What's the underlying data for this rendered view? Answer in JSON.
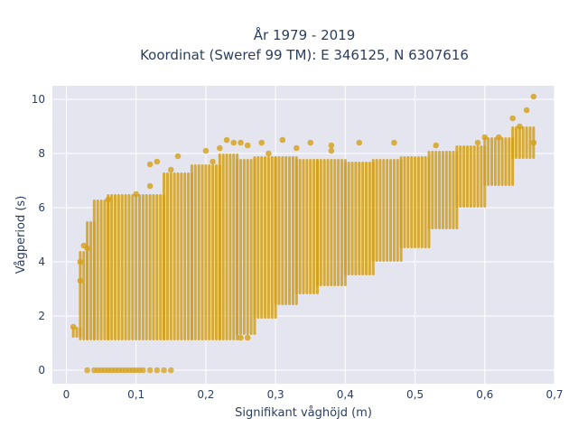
{
  "chart_data": {
    "type": "scatter",
    "title_line1": "År 1979 - 2019",
    "title_line2": "Koordinat (Sweref 99 TM): E 346125, N 6307616",
    "xlabel": "Signifikant våghöjd (m)",
    "ylabel": "Vågperiod (s)",
    "xlim": [
      -0.02,
      0.7
    ],
    "ylim": [
      -0.5,
      10.5
    ],
    "xticks": [
      0,
      0.1,
      0.2,
      0.3,
      0.4,
      0.5,
      0.6,
      0.7
    ],
    "xtick_labels": [
      "0",
      "0,1",
      "0,2",
      "0,3",
      "0,4",
      "0,5",
      "0,6",
      "0,7"
    ],
    "yticks": [
      0,
      2,
      4,
      6,
      8,
      10
    ],
    "ytick_labels": [
      "0",
      "2",
      "4",
      "6",
      "8",
      "10"
    ],
    "grid": true,
    "marker_color": "#d4a017",
    "plot_bg": "#e5e5f0",
    "x_step": 0.005,
    "columns": [
      {
        "x0": 0.01,
        "x1": 0.02,
        "ymin": 1.2,
        "ymax": 1.6
      },
      {
        "x0": 0.02,
        "x1": 0.03,
        "ymin": 1.1,
        "ymax": 4.4
      },
      {
        "x0": 0.03,
        "x1": 0.04,
        "ymin": 1.1,
        "ymax": 5.5
      },
      {
        "x0": 0.04,
        "x1": 0.06,
        "ymin": 1.1,
        "ymax": 6.3
      },
      {
        "x0": 0.06,
        "x1": 0.14,
        "ymin": 1.1,
        "ymax": 6.5
      },
      {
        "x0": 0.14,
        "x1": 0.18,
        "ymin": 1.1,
        "ymax": 7.3
      },
      {
        "x0": 0.18,
        "x1": 0.22,
        "ymin": 1.1,
        "ymax": 7.6
      },
      {
        "x0": 0.22,
        "x1": 0.245,
        "ymin": 1.1,
        "ymax": 8.0
      },
      {
        "x0": 0.245,
        "x1": 0.27,
        "ymin": 1.3,
        "ymax": 7.8
      },
      {
        "x0": 0.27,
        "x1": 0.3,
        "ymin": 1.9,
        "ymax": 7.9
      },
      {
        "x0": 0.3,
        "x1": 0.33,
        "ymin": 2.4,
        "ymax": 7.9
      },
      {
        "x0": 0.33,
        "x1": 0.36,
        "ymin": 2.8,
        "ymax": 7.8
      },
      {
        "x0": 0.36,
        "x1": 0.4,
        "ymin": 3.1,
        "ymax": 7.8
      },
      {
        "x0": 0.4,
        "x1": 0.44,
        "ymin": 3.5,
        "ymax": 7.7
      },
      {
        "x0": 0.44,
        "x1": 0.48,
        "ymin": 4.0,
        "ymax": 7.8
      },
      {
        "x0": 0.48,
        "x1": 0.52,
        "ymin": 4.5,
        "ymax": 7.9
      },
      {
        "x0": 0.52,
        "x1": 0.56,
        "ymin": 5.2,
        "ymax": 8.1
      },
      {
        "x0": 0.56,
        "x1": 0.6,
        "ymin": 6.0,
        "ymax": 8.3
      },
      {
        "x0": 0.6,
        "x1": 0.64,
        "ymin": 6.8,
        "ymax": 8.6
      },
      {
        "x0": 0.64,
        "x1": 0.67,
        "ymin": 7.8,
        "ymax": 9.0
      }
    ],
    "zero_points": [
      0.03,
      0.04,
      0.045,
      0.05,
      0.055,
      0.06,
      0.065,
      0.07,
      0.075,
      0.08,
      0.085,
      0.09,
      0.095,
      0.1,
      0.105,
      0.11,
      0.12,
      0.13,
      0.14,
      0.15
    ],
    "scatter_points": [
      [
        0.01,
        1.6
      ],
      [
        0.02,
        3.3
      ],
      [
        0.02,
        4.0
      ],
      [
        0.025,
        4.6
      ],
      [
        0.03,
        4.5
      ],
      [
        0.06,
        6.3
      ],
      [
        0.1,
        6.5
      ],
      [
        0.12,
        6.8
      ],
      [
        0.12,
        7.6
      ],
      [
        0.13,
        7.7
      ],
      [
        0.15,
        7.4
      ],
      [
        0.16,
        7.9
      ],
      [
        0.2,
        8.1
      ],
      [
        0.21,
        7.7
      ],
      [
        0.22,
        8.2
      ],
      [
        0.23,
        8.5
      ],
      [
        0.24,
        8.4
      ],
      [
        0.25,
        8.4
      ],
      [
        0.26,
        8.3
      ],
      [
        0.28,
        8.4
      ],
      [
        0.29,
        8.0
      ],
      [
        0.31,
        8.5
      ],
      [
        0.33,
        8.2
      ],
      [
        0.35,
        8.4
      ],
      [
        0.38,
        8.3
      ],
      [
        0.38,
        8.1
      ],
      [
        0.42,
        8.4
      ],
      [
        0.47,
        8.4
      ],
      [
        0.53,
        8.3
      ],
      [
        0.59,
        8.4
      ],
      [
        0.6,
        8.6
      ],
      [
        0.62,
        8.6
      ],
      [
        0.64,
        9.3
      ],
      [
        0.65,
        9.0
      ],
      [
        0.66,
        9.6
      ],
      [
        0.67,
        10.1
      ],
      [
        0.67,
        8.4
      ],
      [
        0.25,
        1.2
      ],
      [
        0.26,
        1.2
      ]
    ]
  }
}
